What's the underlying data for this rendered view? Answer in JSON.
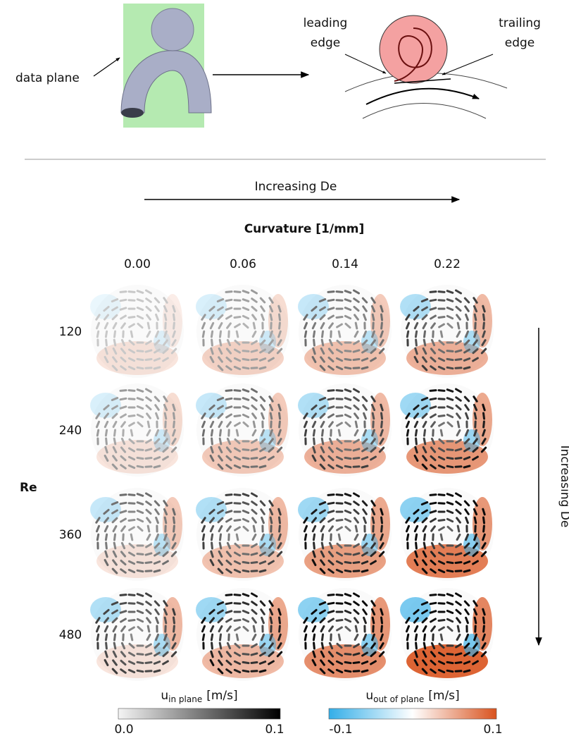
{
  "schematic": {
    "data_plane_label": "data plane",
    "leading_edge_label": [
      "leading",
      "edge"
    ],
    "trailing_edge_label": [
      "trailing",
      "edge"
    ]
  },
  "grid": {
    "top_arrow_label": "Increasing De",
    "column_axis_title": "Curvature [1/mm]",
    "columns": [
      "0.00",
      "0.06",
      "0.14",
      "0.22"
    ],
    "row_axis_title": "Re",
    "rows": [
      "120",
      "240",
      "360",
      "480"
    ],
    "side_arrow_label": "Increasing De"
  },
  "colorbars": [
    {
      "symbol": "u",
      "subscript": "in plane",
      "unit": "[m/s]",
      "min_label": "0.0",
      "max_label": "0.1"
    },
    {
      "symbol": "u",
      "subscript": "out of plane",
      "unit": "[m/s]",
      "min_label": "-0.1",
      "max_label": "0.1"
    }
  ]
}
